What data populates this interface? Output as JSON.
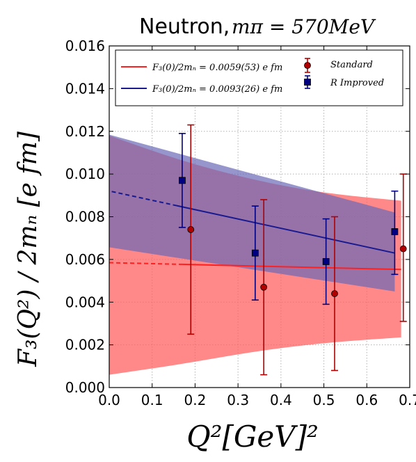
{
  "chart_data": {
    "type": "scatter",
    "title_text": "Neutron,",
    "title_math": "mπ = 570MeV",
    "xlabel": "Q²[GeV]²",
    "ylabel": "F₃(Q²) / 2mₙ [e fm]",
    "xlim": [
      0.0,
      0.7
    ],
    "ylim": [
      0.0,
      0.016
    ],
    "xticks": [
      "0.0",
      "0.1",
      "0.2",
      "0.3",
      "0.4",
      "0.5",
      "0.6",
      "0.7"
    ],
    "yticks": [
      "0.000",
      "0.002",
      "0.004",
      "0.006",
      "0.008",
      "0.010",
      "0.012",
      "0.014",
      "0.016"
    ],
    "grid": true,
    "legend_position": "top",
    "colors": {
      "standard": "#b00000",
      "standard_fit": "#ff2020",
      "standard_band": "#ff6060",
      "improved": "#000080",
      "improved_fit": "#1a1a90",
      "improved_band": "#6a6ab8"
    },
    "series": [
      {
        "name": "Standard",
        "marker": "circle",
        "x": [
          0.19,
          0.36,
          0.525,
          0.685
        ],
        "y": [
          0.0074,
          0.0047,
          0.0044,
          0.0065
        ],
        "yerr_low": [
          0.0049,
          0.0041,
          0.0036,
          0.0034
        ],
        "yerr_high": [
          0.0049,
          0.0041,
          0.0036,
          0.0035
        ]
      },
      {
        "name": "R Improved",
        "marker": "square",
        "x": [
          0.17,
          0.34,
          0.505,
          0.665
        ],
        "y": [
          0.0097,
          0.0063,
          0.0059,
          0.0073
        ],
        "yerr_low": [
          0.0022,
          0.0022,
          0.002,
          0.002
        ],
        "yerr_high": [
          0.0022,
          0.0022,
          0.002,
          0.0019
        ]
      }
    ],
    "fits": [
      {
        "label": "F₃(0)/2mₙ = 0.0059(53) e fm",
        "series": "Standard",
        "line_start": [
          0.0,
          0.00585
        ],
        "line_end": [
          0.68,
          0.00553
        ],
        "solid_from": 0.17,
        "band_upper": [
          [
            0.0,
            0.0118
          ],
          [
            0.17,
            0.0106
          ],
          [
            0.34,
            0.0097
          ],
          [
            0.5,
            0.0091
          ],
          [
            0.68,
            0.00875
          ]
        ],
        "band_lower": [
          [
            0.0,
            0.0006
          ],
          [
            0.17,
            0.0011
          ],
          [
            0.34,
            0.0017
          ],
          [
            0.5,
            0.0021
          ],
          [
            0.68,
            0.00235
          ]
        ],
        "band_x": [
          0.0,
          0.68
        ]
      },
      {
        "label": "F₃(0)/2mₙ = 0.0093(26) e fm",
        "series": "R Improved",
        "line_start": [
          -0.01,
          0.00925
        ],
        "line_end": [
          0.665,
          0.0063
        ],
        "solid_from": 0.15,
        "band_upper": [
          [
            -0.01,
            0.0119
          ],
          [
            0.665,
            0.0082
          ]
        ],
        "band_lower": [
          [
            -0.01,
            0.0066
          ],
          [
            0.665,
            0.0045
          ]
        ],
        "band_x": [
          -0.01,
          0.665
        ]
      }
    ]
  }
}
